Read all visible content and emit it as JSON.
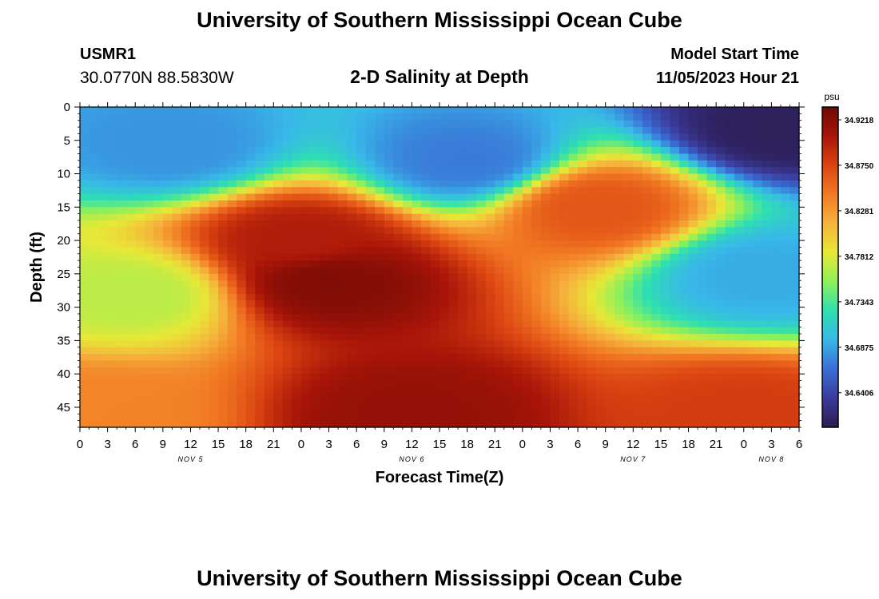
{
  "page": {
    "title_top": "University of Southern Mississippi Ocean Cube",
    "title_bottom": "University of Southern Mississippi Ocean Cube"
  },
  "header": {
    "station_id": "USMR1",
    "coords": "30.0770N  88.5830W",
    "subtitle": "2-D Salinity at Depth",
    "model_start_label": "Model Start Time",
    "model_start_value": "11/05/2023 Hour 21"
  },
  "chart_data": {
    "type": "heatmap",
    "title": "2-D Salinity at Depth",
    "xlabel": "Forecast Time(Z)",
    "ylabel": "Depth (ft)",
    "x_tick_labels": [
      "0",
      "3",
      "6",
      "9",
      "12",
      "15",
      "18",
      "21",
      "0",
      "3",
      "6",
      "9",
      "12",
      "15",
      "18",
      "21",
      "0",
      "3",
      "6",
      "9",
      "12",
      "15",
      "18",
      "21",
      "0",
      "3",
      "6"
    ],
    "x_day_labels": [
      {
        "hour": 12,
        "label": "NOV 5"
      },
      {
        "hour": 36,
        "label": "NOV 6"
      },
      {
        "hour": 60,
        "label": "NOV 7"
      },
      {
        "hour": 75,
        "label": "NOV 8"
      }
    ],
    "xlim_hours": [
      0,
      78
    ],
    "y_ticks": [
      0,
      5,
      10,
      15,
      20,
      25,
      30,
      35,
      40,
      45
    ],
    "ylim_ft": [
      0,
      48
    ],
    "y_inverted": true,
    "colorbar": {
      "unit": "psu",
      "labels": [
        "34.9218",
        "34.8750",
        "34.8281",
        "34.7812",
        "34.7343",
        "34.6875",
        "34.6406"
      ],
      "min": 34.605,
      "max": 34.935,
      "colormap": [
        "#2a1a4e",
        "#3b3b9b",
        "#3a6fd6",
        "#38b8e8",
        "#2ee0b0",
        "#8df05a",
        "#e8e837",
        "#f5b33c",
        "#f27a24",
        "#db4512",
        "#a81508",
        "#6e0a05"
      ]
    },
    "approx_regions": [
      {
        "center_hour": 10,
        "center_depth": 6,
        "value": 34.68
      },
      {
        "center_hour": 6,
        "center_depth": 28,
        "value": 34.77
      },
      {
        "center_hour": 2,
        "center_depth": 46,
        "value": 34.84
      },
      {
        "center_hour": 24,
        "center_depth": 20,
        "value": 34.9
      },
      {
        "center_hour": 27,
        "center_depth": 26,
        "value": 34.925
      },
      {
        "center_hour": 36,
        "center_depth": 46,
        "value": 34.915
      },
      {
        "center_hour": 42,
        "center_depth": 8,
        "value": 34.67
      },
      {
        "center_hour": 56,
        "center_depth": 15,
        "value": 34.865
      },
      {
        "center_hour": 76,
        "center_depth": 3,
        "value": 34.61
      },
      {
        "center_hour": 74,
        "center_depth": 25,
        "value": 34.69
      },
      {
        "center_hour": 72,
        "center_depth": 46,
        "value": 34.88
      }
    ]
  }
}
